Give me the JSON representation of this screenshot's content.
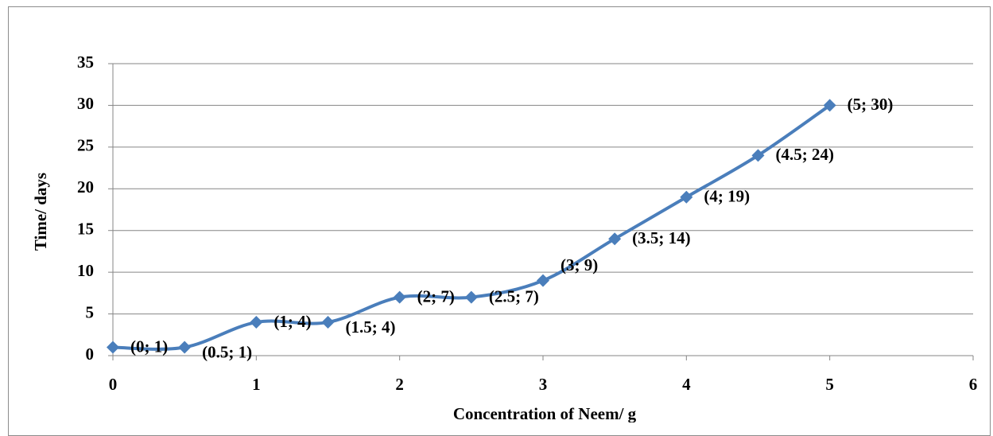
{
  "chart_data": {
    "type": "line",
    "title": "",
    "xlabel": "Concentration of Neem/ g",
    "ylabel": "Time/ days",
    "xlim": [
      0,
      6
    ],
    "ylim": [
      0,
      35
    ],
    "xticks": [
      "0",
      "1",
      "2",
      "3",
      "4",
      "5",
      "6"
    ],
    "yticks": [
      "0",
      "5",
      "10",
      "15",
      "20",
      "25",
      "30",
      "35"
    ],
    "grid": "horizontal",
    "smooth": true,
    "marker": "diamond",
    "series": [
      {
        "x": [
          0,
          0.5,
          1,
          1.5,
          2,
          2.5,
          3,
          3.5,
          4,
          4.5,
          5
        ],
        "y": [
          1,
          1,
          4,
          4,
          7,
          7,
          9,
          14,
          19,
          24,
          30
        ],
        "labels": [
          "(0; 1)",
          "(0.5; 1)",
          "(1; 4)",
          "(1.5; 4)",
          "(2; 7)",
          "(2.5; 7)",
          "(3; 9)",
          "(3.5; 14)",
          "(4; 19)",
          "(4.5; 24)",
          "(5; 30)"
        ]
      }
    ],
    "colors": {
      "line": "#4a7ebb",
      "grid": "#868686",
      "axis": "#868686"
    }
  }
}
